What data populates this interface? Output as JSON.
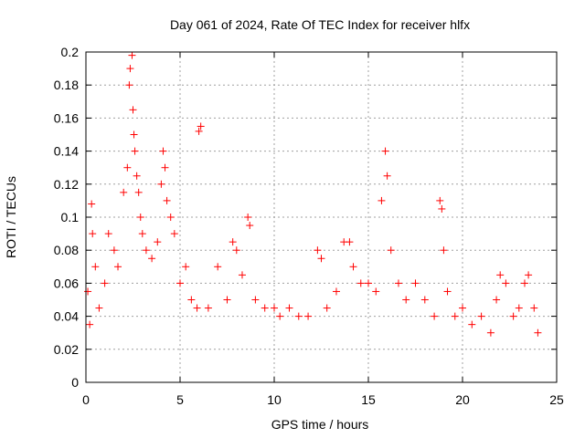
{
  "chart_data": {
    "type": "scatter",
    "title": "Day 061 of 2024, Rate Of TEC Index for receiver hlfx",
    "xlabel": "GPS time / hours",
    "ylabel": "ROTI / TECUs",
    "xlim": [
      0,
      25
    ],
    "ylim": [
      0,
      0.2
    ],
    "x_ticks": [
      0,
      5,
      10,
      15,
      20,
      25
    ],
    "x_tick_labels": [
      "0",
      "5",
      "10",
      "15",
      "20",
      "25"
    ],
    "y_ticks": [
      0,
      0.02,
      0.04,
      0.06,
      0.08,
      0.1,
      0.12,
      0.14,
      0.16,
      0.18,
      0.2
    ],
    "y_tick_labels": [
      "0",
      "0.02",
      "0.04",
      "0.06",
      "0.08",
      "0.1",
      "0.12",
      "0.14",
      "0.16",
      "0.18",
      "0.2"
    ],
    "grid": true,
    "marker": "+",
    "marker_color": "#ff0000",
    "series": [
      {
        "name": "ROTI",
        "x": [
          0.1,
          0.2,
          0.3,
          0.35,
          0.5,
          0.7,
          1.0,
          1.2,
          1.5,
          1.7,
          2.0,
          2.2,
          2.3,
          2.35,
          2.45,
          2.5,
          2.55,
          2.6,
          2.7,
          2.8,
          2.9,
          3.0,
          3.2,
          3.5,
          3.8,
          4.0,
          4.1,
          4.2,
          4.3,
          4.5,
          4.7,
          5.0,
          5.3,
          5.6,
          5.9,
          6.0,
          6.1,
          6.5,
          7.0,
          7.5,
          7.8,
          8.0,
          8.3,
          8.6,
          8.7,
          9.0,
          9.5,
          10.0,
          10.3,
          10.8,
          11.3,
          11.8,
          12.3,
          12.5,
          12.8,
          13.3,
          13.7,
          14.0,
          14.2,
          14.6,
          15.0,
          15.4,
          15.7,
          15.9,
          16.0,
          16.2,
          16.6,
          17.0,
          17.5,
          18.0,
          18.5,
          18.8,
          18.9,
          19.0,
          19.2,
          19.6,
          20.0,
          20.5,
          21.0,
          21.5,
          21.8,
          22.0,
          22.3,
          22.7,
          23.0,
          23.3,
          23.5,
          23.8,
          24.0
        ],
        "y": [
          0.055,
          0.035,
          0.108,
          0.09,
          0.07,
          0.045,
          0.06,
          0.09,
          0.08,
          0.07,
          0.115,
          0.13,
          0.18,
          0.19,
          0.198,
          0.165,
          0.15,
          0.14,
          0.125,
          0.115,
          0.1,
          0.09,
          0.08,
          0.075,
          0.085,
          0.12,
          0.14,
          0.13,
          0.11,
          0.1,
          0.09,
          0.06,
          0.07,
          0.05,
          0.045,
          0.152,
          0.155,
          0.045,
          0.07,
          0.05,
          0.085,
          0.08,
          0.065,
          0.1,
          0.095,
          0.05,
          0.045,
          0.045,
          0.04,
          0.045,
          0.04,
          0.04,
          0.08,
          0.075,
          0.045,
          0.055,
          0.085,
          0.085,
          0.07,
          0.06,
          0.06,
          0.055,
          0.11,
          0.14,
          0.125,
          0.08,
          0.06,
          0.05,
          0.06,
          0.05,
          0.04,
          0.11,
          0.105,
          0.08,
          0.055,
          0.04,
          0.045,
          0.035,
          0.04,
          0.03,
          0.05,
          0.065,
          0.06,
          0.04,
          0.045,
          0.06,
          0.065,
          0.045,
          0.03
        ]
      }
    ]
  }
}
